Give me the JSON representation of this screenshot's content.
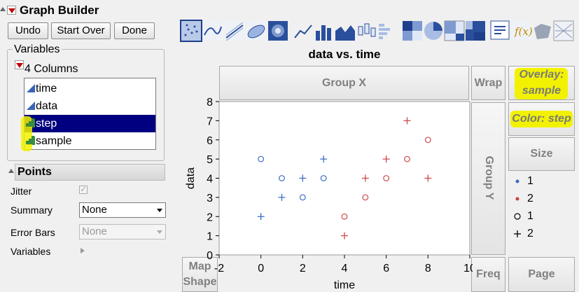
{
  "window": {
    "title": "Graph Builder"
  },
  "toolbar": {
    "undo": "Undo",
    "start_over": "Start Over",
    "done": "Done"
  },
  "variables_panel": {
    "title": "Variables",
    "columns_label": "4 Columns",
    "columns": [
      {
        "name": "time",
        "type": "continuous"
      },
      {
        "name": "data",
        "type": "continuous"
      },
      {
        "name": "step",
        "type": "ordinal",
        "selected": true
      },
      {
        "name": "sample",
        "type": "ordinal"
      }
    ]
  },
  "points_panel": {
    "title": "Points",
    "jitter_label": "Jitter",
    "summary_label": "Summary",
    "summary_value": "None",
    "error_bars_label": "Error Bars",
    "error_bars_value": "None",
    "variables_label": "Variables"
  },
  "zones": {
    "group_x": "Group X",
    "wrap": "Wrap",
    "group_y": "Group Y",
    "overlay_line1": "Overlay:",
    "overlay_line2": "sample",
    "color": "Color: step",
    "size": "Size",
    "map_line1": "Map",
    "map_line2": "Shape",
    "freq": "Freq",
    "page": "Page"
  },
  "legend": [
    {
      "marker": "dot",
      "label": "1",
      "color": "#3a6cc4"
    },
    {
      "marker": "dot",
      "label": "2",
      "color": "#c84040"
    },
    {
      "marker": "circle",
      "label": "1",
      "color": "#000000"
    },
    {
      "marker": "plus",
      "label": "2",
      "color": "#000000"
    }
  ],
  "colors": {
    "blue": "#3a6cc4",
    "red": "#d04848",
    "highlight": "#f2f200",
    "selection": "#000080"
  },
  "chart_data": {
    "type": "scatter",
    "title": "data vs. time",
    "xlabel": "time",
    "ylabel": "data",
    "xlim": [
      -2,
      10
    ],
    "ylim": [
      0,
      8
    ],
    "xticks": [
      -2,
      0,
      2,
      4,
      6,
      8,
      10
    ],
    "yticks": [
      0,
      1,
      2,
      3,
      4,
      5,
      6,
      7,
      8
    ],
    "grid": false,
    "series": [
      {
        "step": "1",
        "sample": "1",
        "marker": "circle",
        "color": "#3a6cc4",
        "x": [
          0,
          1,
          2,
          3
        ],
        "y": [
          5,
          4,
          3,
          4
        ]
      },
      {
        "step": "1",
        "sample": "2",
        "marker": "plus",
        "color": "#3a6cc4",
        "x": [
          0,
          1,
          2,
          3
        ],
        "y": [
          2,
          3,
          4,
          5
        ]
      },
      {
        "step": "2",
        "sample": "1",
        "marker": "circle",
        "color": "#d04848",
        "x": [
          4,
          5,
          6,
          7,
          8
        ],
        "y": [
          2,
          3,
          4,
          5,
          6
        ]
      },
      {
        "step": "2",
        "sample": "2",
        "marker": "plus",
        "color": "#d04848",
        "x": [
          4,
          5,
          6,
          7,
          8
        ],
        "y": [
          1,
          4,
          5,
          7,
          4
        ]
      }
    ]
  }
}
